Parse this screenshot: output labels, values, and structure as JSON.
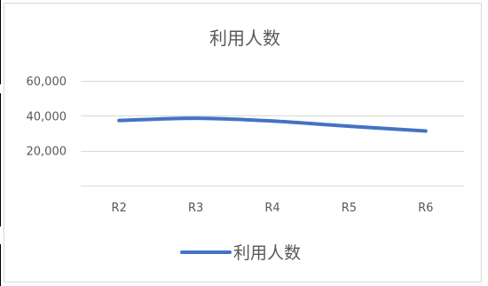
{
  "chart_data": {
    "type": "line",
    "title": "利用人数",
    "categories": [
      "R2",
      "R3",
      "R4",
      "R5",
      "R6"
    ],
    "series": [
      {
        "name": "利用人数",
        "values": [
          37300,
          38600,
          37000,
          34000,
          31300
        ]
      }
    ],
    "ylim": [
      0,
      60000
    ],
    "y_ticks": [
      20000,
      40000,
      60000
    ],
    "y_tick_labels": [
      "20,000",
      "40,000",
      "60,000"
    ],
    "xlabel": "",
    "ylabel": "",
    "grid": true,
    "legend_position": "bottom",
    "colors": {
      "series": "#4472c4",
      "grid": "#d9d9d9",
      "text": "#595959"
    }
  }
}
